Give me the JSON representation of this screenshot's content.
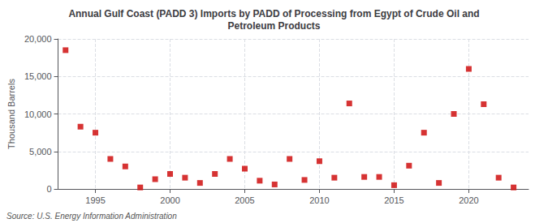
{
  "chart_data": {
    "type": "scatter",
    "title": "Annual Gulf Coast (PADD 3) Imports by PADD of Processing from Egypt of Crude Oil and\nPetroleum Products",
    "y_label": "Thousand Barrels",
    "annotation": "Source: U.S. Energy Information Administration",
    "x": [
      1993,
      1994,
      1995,
      1996,
      1997,
      1998,
      1999,
      2000,
      2001,
      2002,
      2003,
      2004,
      2005,
      2006,
      2007,
      2008,
      2009,
      2010,
      2011,
      2012,
      2013,
      2014,
      2015,
      2016,
      2017,
      2018,
      2019,
      2020,
      2021,
      2022,
      2023
    ],
    "values": [
      18500,
      8300,
      7500,
      4000,
      3000,
      200,
      1300,
      2000,
      1500,
      800,
      2000,
      4000,
      2700,
      1100,
      600,
      4000,
      1200,
      3700,
      1500,
      11400,
      1600,
      1600,
      500,
      3100,
      7500,
      800,
      10000,
      16000,
      11300,
      1500,
      200
    ],
    "color": "#cc0000",
    "marker": "square",
    "xlim": [
      1992.5,
      2024
    ],
    "xticks": [
      1995,
      2000,
      2005,
      2010,
      2015,
      2020
    ],
    "ylim": [
      0,
      20000
    ],
    "yticks": [
      0,
      {
        "value": 5000,
        "label": "5,000"
      },
      {
        "value": 10000,
        "label": "10,000"
      },
      {
        "value": 15000,
        "label": "15,000"
      },
      {
        "value": 20000,
        "label": "20,000"
      }
    ],
    "grid": true
  }
}
